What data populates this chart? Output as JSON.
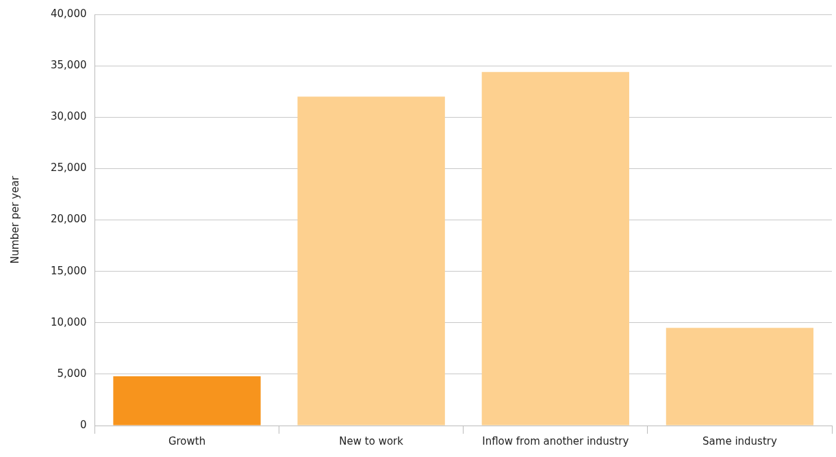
{
  "chart_data": {
    "type": "bar",
    "ylabel": "Number per year",
    "categories": [
      "Growth",
      "New to work",
      "Inflow from another industry",
      "Same industry"
    ],
    "values": [
      4800,
      32000,
      34400,
      9500
    ],
    "colors": [
      "#f7941d",
      "#fdd08f",
      "#fdd08f",
      "#fdd08f"
    ],
    "ylim": [
      0,
      40000
    ],
    "yticks": [
      0,
      {
        "value": 5000,
        "label": "5,000"
      },
      {
        "value": 10000,
        "label": "10,000"
      },
      {
        "value": 15000,
        "label": "15,000"
      },
      {
        "value": 20000,
        "label": "20,000"
      },
      {
        "value": 25000,
        "label": "25,000"
      },
      {
        "value": 30000,
        "label": "30,000"
      },
      {
        "value": 35000,
        "label": "35,000"
      },
      {
        "value": 40000,
        "label": "40,000"
      }
    ],
    "grid": "y",
    "legend": false
  }
}
